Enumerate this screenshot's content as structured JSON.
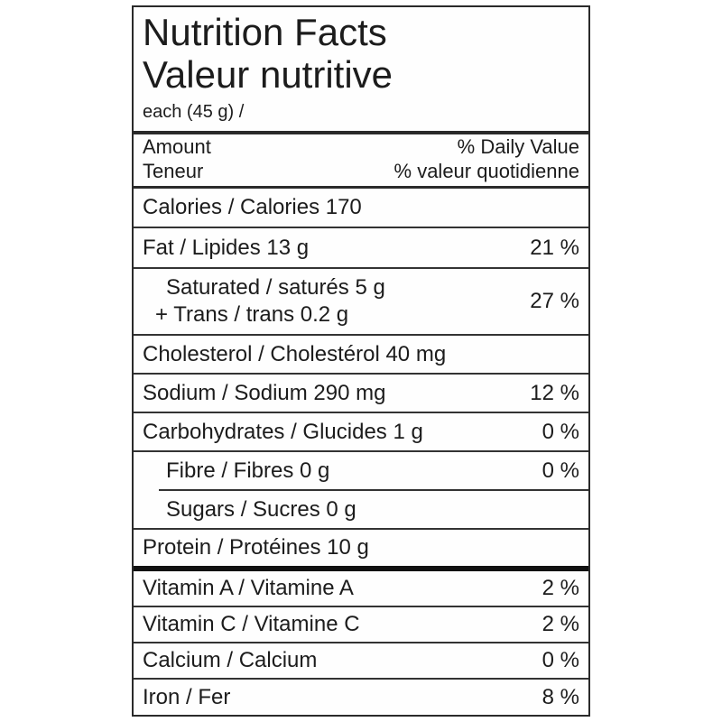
{
  "colors": {
    "text": "#1c1c1c",
    "background": "#ffffff",
    "rule": "#2a2a2a"
  },
  "label": {
    "title_en": "Nutrition Facts",
    "title_fr": "Valeur nutritive",
    "serving": "each (45 g) /",
    "header": {
      "amount_en": "Amount",
      "amount_fr": "Teneur",
      "dv_en": "% Daily Value",
      "dv_fr": "% valeur quotidienne"
    },
    "rows": [
      {
        "label": "Calories / Calories 170",
        "percent": ""
      },
      {
        "label": "Fat / Lipides 13 g",
        "percent": "21 %"
      },
      {
        "label": "Saturated / saturés 5 g",
        "label2": "+ Trans / trans 0.2 g",
        "percent": "27 %"
      },
      {
        "label": "Cholesterol / Cholestérol 40 mg",
        "percent": ""
      },
      {
        "label": "Sodium / Sodium 290 mg",
        "percent": "12 %"
      },
      {
        "label": "Carbohydrates / Glucides 1 g",
        "percent": "0 %"
      },
      {
        "label": "Fibre / Fibres 0 g",
        "percent": "0 %"
      },
      {
        "label": "Sugars / Sucres 0 g",
        "percent": ""
      },
      {
        "label": "Protein / Protéines 10 g",
        "percent": ""
      },
      {
        "label": "Vitamin A / Vitamine A",
        "percent": "2 %"
      },
      {
        "label": "Vitamin C / Vitamine C",
        "percent": "2 %"
      },
      {
        "label": "Calcium / Calcium",
        "percent": "0 %"
      },
      {
        "label": "Iron / Fer",
        "percent": "8 %"
      }
    ]
  }
}
